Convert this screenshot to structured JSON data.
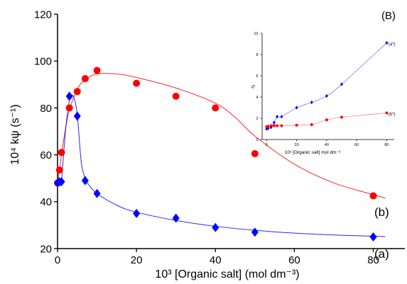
{
  "chart_data": [
    {
      "type": "scatter",
      "panel_label": "(B)",
      "xlabel": "10³ [Organic salt]  (mol dm⁻³)",
      "ylabel": "10⁴ kψ (s⁻¹)",
      "xlim": [
        0,
        88
      ],
      "ylim": [
        20,
        120
      ],
      "xticks": [
        0,
        20,
        40,
        60,
        80
      ],
      "yticks": [
        20,
        40,
        60,
        80,
        100,
        120
      ],
      "grid": false,
      "series": [
        {
          "name": "(b)",
          "color": "#ff0000",
          "marker": "circle",
          "x": [
            0,
            0.5,
            1,
            3,
            5,
            7,
            10,
            20,
            30,
            40,
            50,
            80
          ],
          "y": [
            48,
            53.5,
            61,
            80,
            87,
            92.5,
            96,
            90.5,
            85,
            80,
            60.5,
            42.5
          ],
          "fit_x": [
            0,
            0.5,
            1,
            2,
            3,
            5,
            7,
            10,
            15,
            20,
            30,
            40,
            45,
            50,
            60,
            70,
            80,
            83
          ],
          "fit_y": [
            48,
            53.5,
            60,
            71,
            79,
            88,
            92,
            94.5,
            94.5,
            93,
            88.5,
            82,
            76,
            68,
            56,
            48,
            43,
            41.5
          ]
        },
        {
          "name": "(a)",
          "color": "#0000ff",
          "marker": "diamond",
          "x": [
            0,
            0.5,
            1,
            3,
            5,
            7,
            10,
            20,
            30,
            40,
            50,
            80
          ],
          "y": [
            48,
            48.5,
            48.5,
            85,
            76.5,
            49,
            43.5,
            35,
            33,
            29,
            27,
            25
          ],
          "fit_x": [
            0,
            0.5,
            1,
            2,
            3,
            4,
            5,
            6,
            7,
            8,
            10,
            15,
            20,
            30,
            40,
            50,
            60,
            70,
            80,
            83
          ],
          "fit_y": [
            48,
            48.3,
            49,
            70,
            83,
            85,
            77,
            57,
            50,
            47,
            43.5,
            38.5,
            35.5,
            32,
            29.5,
            27.8,
            26.6,
            25.8,
            25.3,
            25.1
          ]
        }
      ]
    },
    {
      "type": "scatter",
      "inset": true,
      "xlabel": "10³ [Organic salt] mol dm⁻³",
      "ylabel": "ηᵣ",
      "xlim": [
        -3,
        85
      ],
      "ylim": [
        0,
        10
      ],
      "xticks": [
        0,
        20,
        40,
        60,
        80
      ],
      "yticks": [
        0,
        2,
        4,
        6,
        8,
        10
      ],
      "grid": false,
      "series": [
        {
          "name": "(a*)",
          "color": "#0000ff",
          "marker": "diamond",
          "x": [
            0,
            1,
            3,
            5,
            7,
            10,
            20,
            30,
            40,
            50,
            80
          ],
          "y": [
            1.0,
            1.05,
            1.15,
            1.6,
            2.15,
            2.15,
            3.0,
            3.5,
            4.1,
            5.2,
            9.1
          ]
        },
        {
          "name": "(b*)",
          "color": "#ff0000",
          "marker": "circle",
          "x": [
            0,
            1,
            3,
            5,
            7,
            10,
            20,
            30,
            40,
            50,
            80
          ],
          "y": [
            1.2,
            1.25,
            1.3,
            1.3,
            1.3,
            1.3,
            1.35,
            1.4,
            1.85,
            2.1,
            2.5
          ]
        }
      ]
    }
  ]
}
